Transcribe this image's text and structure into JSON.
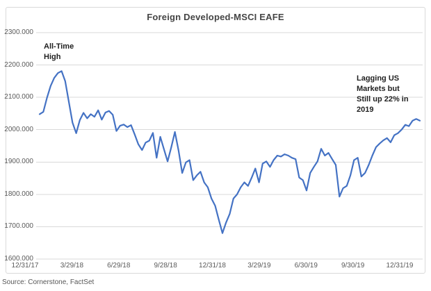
{
  "chart_data": {
    "type": "line",
    "title": "Foreign Developed-MSCI EAFE",
    "x_tick_labels": [
      "12/31/17",
      "3/29/18",
      "6/29/18",
      "9/28/18",
      "12/31/18",
      "3/29/19",
      "6/30/19",
      "9/30/19",
      "12/31/19"
    ],
    "y_tick_labels": [
      "2300.000",
      "2200.000",
      "2100.000",
      "2000.000",
      "1900.000",
      "1800.000",
      "1700.000",
      "1600.000"
    ],
    "ylim": [
      1600,
      2300
    ],
    "y_step": 100,
    "grid": "horizontal-only",
    "legend": "none",
    "annotations": [
      {
        "lines": [
          "All-Time",
          "High"
        ],
        "anchor": "above 1/2018 peak"
      },
      {
        "lines": [
          "Lagging US",
          "Markets but",
          "Still up 22% in",
          "2019"
        ],
        "anchor": "upper right"
      }
    ],
    "series": [
      {
        "name": "MSCI EAFE",
        "frequency": "weekly (approximate trace)",
        "values": [
          2048,
          2055,
          2098,
          2135,
          2160,
          2175,
          2181,
          2150,
          2085,
          2022,
          1989,
          2030,
          2052,
          2035,
          2048,
          2040,
          2060,
          2031,
          2053,
          2058,
          2046,
          1996,
          2012,
          2016,
          2008,
          2014,
          1985,
          1955,
          1937,
          1960,
          1966,
          1990,
          1913,
          1978,
          1940,
          1902,
          1945,
          1993,
          1935,
          1866,
          1899,
          1906,
          1844,
          1859,
          1870,
          1837,
          1822,
          1787,
          1765,
          1722,
          1680,
          1713,
          1740,
          1787,
          1800,
          1822,
          1837,
          1826,
          1852,
          1880,
          1837,
          1895,
          1902,
          1885,
          1906,
          1920,
          1917,
          1924,
          1920,
          1913,
          1909,
          1852,
          1844,
          1812,
          1866,
          1885,
          1902,
          1941,
          1920,
          1928,
          1909,
          1891,
          1793,
          1819,
          1826,
          1859,
          1906,
          1913,
          1855,
          1866,
          1891,
          1920,
          1946,
          1957,
          1967,
          1974,
          1961,
          1983,
          1989,
          2000,
          2015,
          2011,
          2028,
          2033,
          2028
        ]
      }
    ]
  },
  "colors": {
    "line": "#4472C4",
    "gridline": "#D9D9D9",
    "frame_border": "#D9D9D9",
    "axis_text": "#595959",
    "title_text": "#454545",
    "annotation_text": "#1F1F1F"
  },
  "footer": {
    "source": "Source:  Cornerstone, FactSet"
  }
}
